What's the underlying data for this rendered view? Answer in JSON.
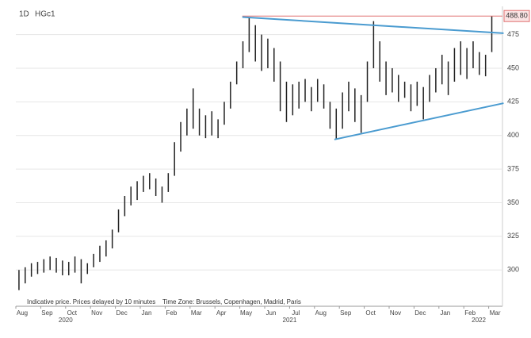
{
  "chart_data": {
    "type": "range-bar",
    "interval": "1D",
    "symbol": "HGc1",
    "note": "Indicative price. Prices delayed by 10 minutes",
    "timezone": "Time Zone: Brussels, Copenhagen, Madrid, Paris",
    "categories": [
      "Aug",
      "Sep",
      "Oct",
      "Nov",
      "Dec",
      "Jan",
      "Feb",
      "Mar",
      "Apr",
      "May",
      "Jun",
      "Jul",
      "Aug",
      "Sep",
      "Oct",
      "Nov",
      "Dec",
      "Jan",
      "Feb",
      "Mar"
    ],
    "years": [
      {
        "label": "2020",
        "month": 2
      },
      {
        "label": "2021",
        "month": 11
      },
      {
        "label": "2022",
        "month": 18.6
      }
    ],
    "high": [
      [
        300,
        302,
        305,
        306
      ],
      [
        308,
        310,
        309,
        307
      ],
      [
        306,
        310,
        308,
        305
      ],
      [
        312,
        318,
        322,
        330
      ],
      [
        345,
        355,
        362,
        366
      ],
      [
        370,
        372,
        368,
        362
      ],
      [
        372,
        395,
        410,
        420
      ],
      [
        435,
        420,
        415,
        418
      ],
      [
        412,
        425,
        440,
        455
      ],
      [
        470,
        488,
        482,
        475
      ],
      [
        472,
        465,
        455,
        440
      ],
      [
        438,
        440,
        442,
        436
      ],
      [
        442,
        438,
        425,
        420
      ],
      [
        432,
        440,
        435,
        430
      ],
      [
        455,
        485,
        470,
        455
      ],
      [
        450,
        445,
        440,
        438
      ],
      [
        440,
        436,
        445,
        450
      ],
      [
        460,
        455,
        465,
        470
      ],
      [
        465,
        470,
        462,
        460
      ],
      [
        488.8
      ]
    ],
    "low": [
      [
        285,
        290,
        295,
        297
      ],
      [
        298,
        300,
        298,
        296
      ],
      [
        296,
        298,
        290,
        297
      ],
      [
        302,
        306,
        310,
        316
      ],
      [
        328,
        340,
        348,
        352
      ],
      [
        358,
        360,
        355,
        350
      ],
      [
        358,
        370,
        388,
        400
      ],
      [
        405,
        400,
        398,
        400
      ],
      [
        398,
        408,
        420,
        438
      ],
      [
        450,
        462,
        455,
        448
      ],
      [
        450,
        440,
        418,
        410
      ],
      [
        415,
        420,
        425,
        418
      ],
      [
        425,
        420,
        405,
        397
      ],
      [
        405,
        418,
        410,
        402
      ],
      [
        425,
        450,
        440,
        430
      ],
      [
        432,
        425,
        428,
        418
      ],
      [
        422,
        412,
        425,
        432
      ],
      [
        438,
        430,
        440,
        445
      ],
      [
        442,
        450,
        445,
        444
      ],
      [
        462
      ]
    ],
    "color": "#222222",
    "last_price": {
      "value": 488.8,
      "label": "488.80"
    },
    "last_price_color": "#e07070",
    "trendlines": [
      {
        "from": 9.1,
        "to": 19.6,
        "values": [
          488,
          476
        ],
        "color": "#4a9bd0"
      },
      {
        "from": 12.8,
        "to": 19.6,
        "values": [
          397,
          424
        ],
        "color": "#4a9bd0"
      }
    ],
    "ylim": [
      273,
      496
    ],
    "yticks": [
      300,
      325,
      350,
      375,
      400,
      425,
      450,
      475
    ],
    "grid": true
  }
}
